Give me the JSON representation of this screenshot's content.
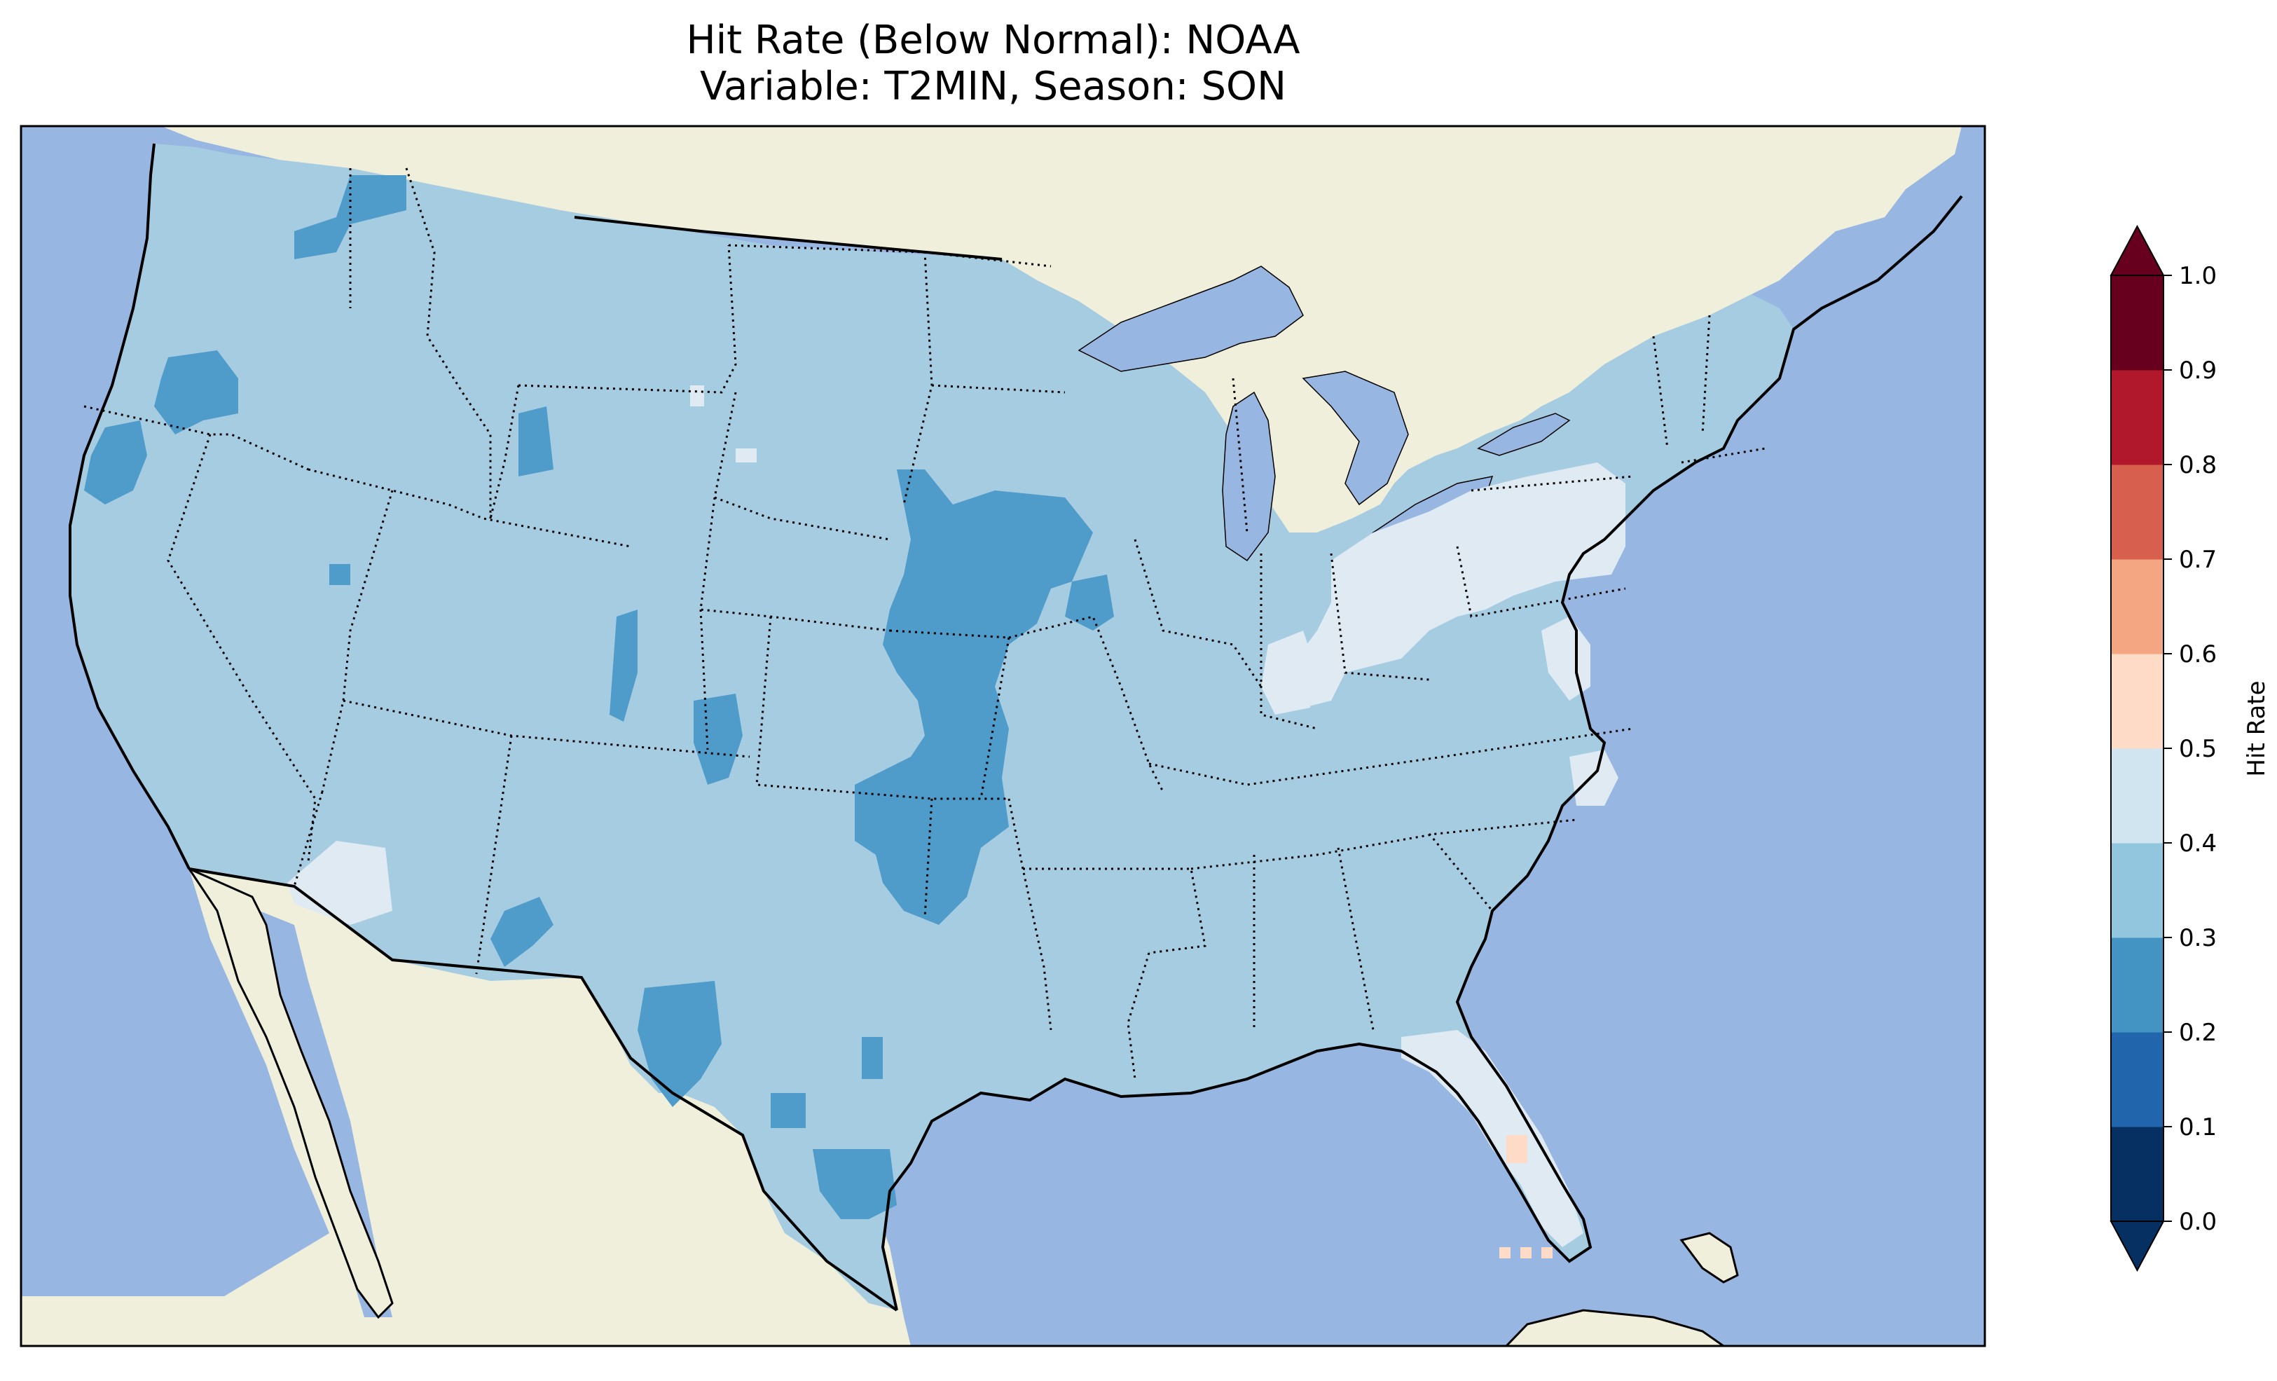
{
  "title_line1": "Hit Rate (Below Normal): NOAA",
  "title_line2": "Variable: T2MIN, Season: SON",
  "colorbar": {
    "label": "Hit Rate",
    "ticks": [
      "0.0",
      "0.1",
      "0.2",
      "0.3",
      "0.4",
      "0.5",
      "0.6",
      "0.7",
      "0.8",
      "0.9",
      "1.0"
    ],
    "bins": [
      {
        "range": "0.0-0.1",
        "color": "#053061"
      },
      {
        "range": "0.1-0.2",
        "color": "#2166ac"
      },
      {
        "range": "0.2-0.3",
        "color": "#4393c3"
      },
      {
        "range": "0.3-0.4",
        "color": "#92c5de"
      },
      {
        "range": "0.4-0.5",
        "color": "#d1e5f0"
      },
      {
        "range": "0.5-0.6",
        "color": "#fddbc7"
      },
      {
        "range": "0.6-0.7",
        "color": "#f4a582"
      },
      {
        "range": "0.7-0.8",
        "color": "#d6604d"
      },
      {
        "range": "0.8-0.9",
        "color": "#b2182b"
      },
      {
        "range": "0.9-1.0",
        "color": "#67001f"
      }
    ],
    "extend": "both"
  },
  "map": {
    "ocean_color": "#97b6e1",
    "land_color": "#efefdb",
    "dominant_bin": "0.3-0.4",
    "regions_0_2_to_0_3": [
      "Pacific Northwest",
      "Kansas",
      "Nebraska",
      "Missouri",
      "Oklahoma",
      "New Mexico",
      "West Texas",
      "South Texas"
    ],
    "regions_0_4_to_0_5": [
      "Ohio",
      "Indiana",
      "Pennsylvania",
      "Southern California",
      "Florida",
      "North Carolina coast"
    ],
    "regions_0_5_to_0_6": [
      "South Florida"
    ]
  }
}
